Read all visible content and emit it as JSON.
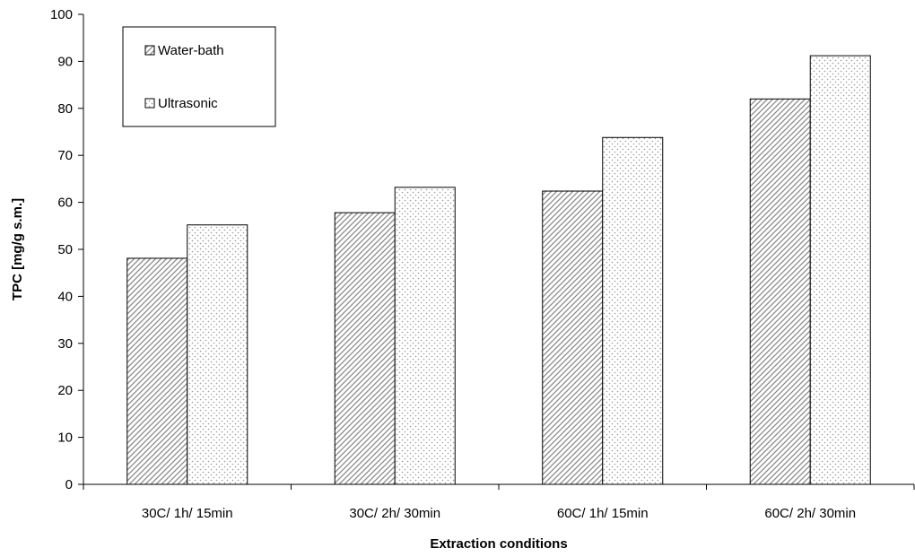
{
  "chart_data": {
    "type": "bar",
    "title": "",
    "xlabel": "Extraction conditions",
    "ylabel": "TPC [mg/g s.m.]",
    "ylim": [
      0,
      100
    ],
    "yticks": [
      "0",
      "10",
      "20",
      "30",
      "40",
      "50",
      "60",
      "70",
      "80",
      "90",
      "100"
    ],
    "categories": [
      "30C/ 1h/ 15min",
      "30C/ 2h/ 30min",
      "60C/ 1h/ 15min",
      "60C/ 2h/ 30min"
    ],
    "series": [
      {
        "name": "Water-bath",
        "values": [
          48.1,
          57.8,
          62.4,
          82.0
        ],
        "pattern": "diagonal-hatch"
      },
      {
        "name": "Ultrasonic",
        "values": [
          55.2,
          63.2,
          73.8,
          91.2
        ],
        "pattern": "dots"
      }
    ],
    "grid": false,
    "legend_position": "top-left"
  }
}
